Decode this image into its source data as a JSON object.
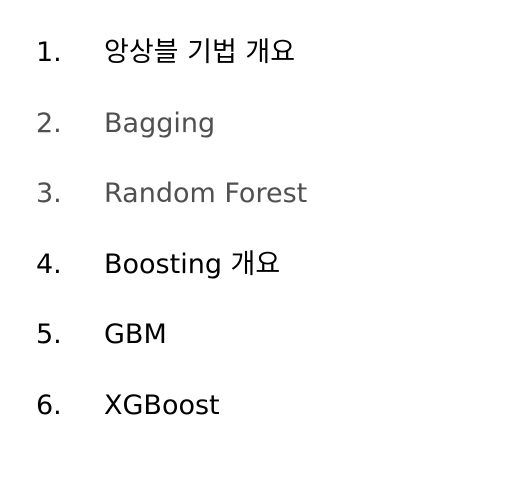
{
  "colors": {
    "active": "#000000",
    "inactive": "#505050"
  },
  "toc": {
    "items": [
      {
        "number": "1.",
        "label": "앙상블 기법 개요",
        "state": "active"
      },
      {
        "number": "2.",
        "label": "Bagging",
        "state": "inactive"
      },
      {
        "number": "3.",
        "label": "Random Forest",
        "state": "inactive"
      },
      {
        "number": "4.",
        "label": "Boosting 개요",
        "state": "active"
      },
      {
        "number": "5.",
        "label": "GBM",
        "state": "active"
      },
      {
        "number": "6.",
        "label": "XGBoost",
        "state": "active"
      }
    ]
  }
}
